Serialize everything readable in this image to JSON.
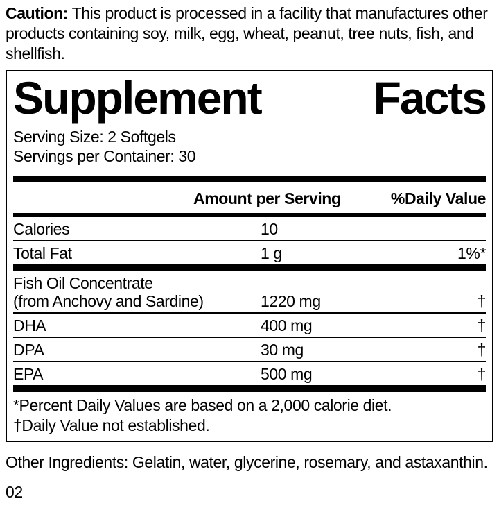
{
  "caution": {
    "label": "Caution:",
    "text": " This product is processed in a facility that manufactures other products containing soy, milk, egg, wheat, peanut, tree nuts, fish, and shellfish."
  },
  "panel": {
    "title_word1": "Supplement",
    "title_word2": "Facts",
    "serving_size": "Serving Size: 2 Softgels",
    "servings_per_container": "Servings per Container: 30",
    "columns": {
      "amount": "Amount per Serving",
      "daily_value": "%Daily Value"
    },
    "rows": [
      {
        "name": "Calories",
        "amount": "10",
        "dv": ""
      },
      {
        "name": "Total Fat",
        "amount": "1 g",
        "dv": "1%*"
      },
      {
        "name": "Fish Oil Concentrate",
        "name2": "(from Anchovy and Sardine)",
        "amount": "1220 mg",
        "dv": "†"
      },
      {
        "name": "DHA",
        "amount": "400 mg",
        "dv": "†"
      },
      {
        "name": "DPA",
        "amount": "30 mg",
        "dv": "†"
      },
      {
        "name": "EPA",
        "amount": "500 mg",
        "dv": "†"
      }
    ],
    "footnotes": [
      "*Percent Daily Values are based on a 2,000 calorie diet.",
      "†Daily Value not established."
    ]
  },
  "other_ingredients": "Other Ingredients: Gelatin, water, glycerine, rosemary, and astaxanthin.",
  "code": "02",
  "colors": {
    "ink": "#000000",
    "paper": "#ffffff"
  }
}
